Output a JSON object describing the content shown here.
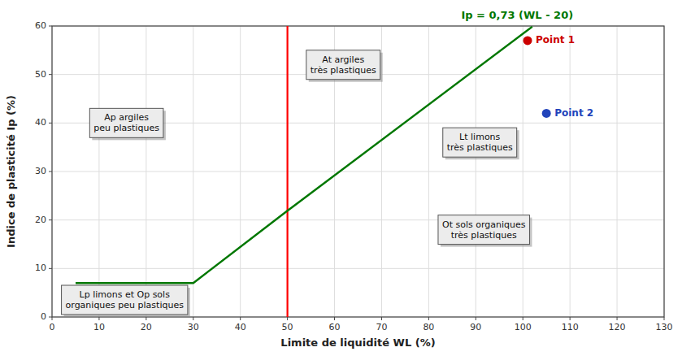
{
  "chart_data": {
    "type": "line",
    "title": "Ip = 0,73 (WL - 20)",
    "x_label": "Limite de liquidité WL (%)",
    "y_label": "Indice de plasticité Ip (%)",
    "xlim": [
      0,
      130
    ],
    "ylim": [
      0,
      60
    ],
    "xticks": [
      0,
      10,
      20,
      30,
      40,
      50,
      60,
      70,
      80,
      90,
      100,
      110,
      120,
      130
    ],
    "yticks": [
      0,
      10,
      20,
      30,
      40,
      50,
      60
    ],
    "grid": true,
    "series": [
      {
        "type": "line",
        "x": [
          5,
          30,
          50,
          102.0
        ],
        "values": [
          7,
          7,
          21.9,
          59.86
        ],
        "color": "#007700"
      },
      {
        "type": "scatter",
        "name": "Point 1",
        "x": [
          101
        ],
        "values": [
          57
        ],
        "color": "#cc0000"
      },
      {
        "type": "scatter",
        "name": "Point 2",
        "x": [
          105
        ],
        "values": [
          42
        ],
        "color": "#2244bb"
      }
    ],
    "vlines": [
      {
        "x": 50,
        "color": "#ff0000"
      }
    ],
    "annotations": [
      {
        "text": "Lp limons et Op sols\norganiques peu plastiques",
        "x": 2,
        "y": 0.3
      },
      {
        "text": "Ap argiles\npeu plastiques",
        "x": 8,
        "y": 40
      },
      {
        "text": "At argiles\ntrès plastiques",
        "x": 54,
        "y": 52
      },
      {
        "text": "Lt limons\ntrès plastiques",
        "x": 83,
        "y": 36
      },
      {
        "text": "Ot sols organiques\ntrès plastiques",
        "x": 82,
        "y": 18
      }
    ]
  }
}
